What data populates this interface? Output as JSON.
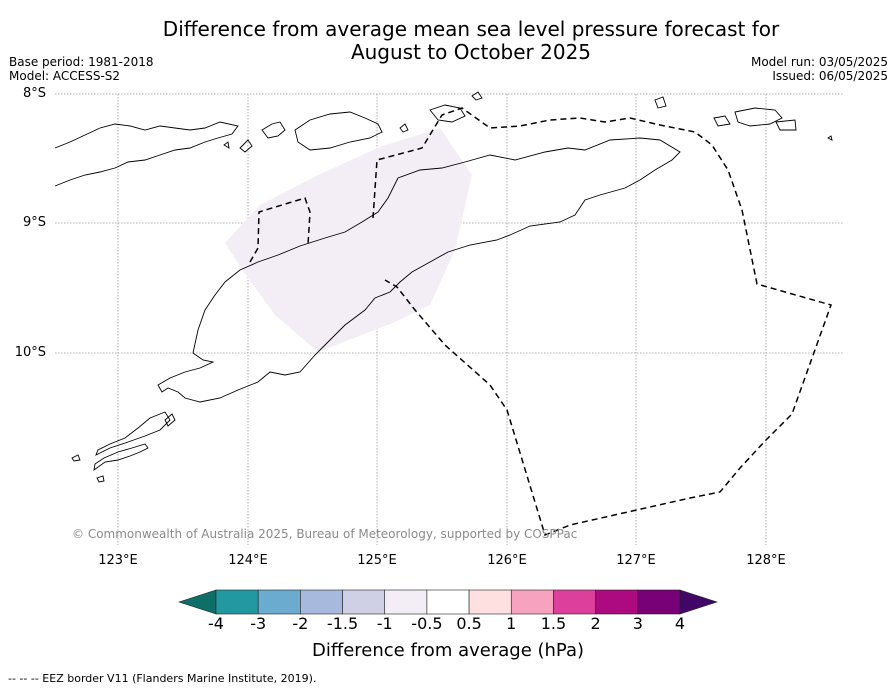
{
  "title_line1": "Difference from average mean sea level pressure forecast for",
  "title_line2": "August to October 2025",
  "meta": {
    "base_period": "Base period: 1981-2018",
    "model": "Model: ACCESS-S2",
    "model_run": "Model run: 03/05/2025",
    "issued": "Issued: 06/05/2025"
  },
  "lat_labels": [
    "8°S",
    "9°S",
    "10°S"
  ],
  "lon_labels": [
    "123°E",
    "124°E",
    "125°E",
    "126°E",
    "127°E",
    "128°E"
  ],
  "copyright": "© Commonwealth of Australia 2025, Bureau of Meteorology, supported by COSPPac",
  "colorbar": {
    "label": "Difference from average (hPa)",
    "ticks": [
      "-4",
      "-3",
      "-2",
      "-1.5",
      "-1",
      "-0.5",
      "0.5",
      "1",
      "1.5",
      "2",
      "3",
      "4"
    ],
    "colors": [
      "#0e6f68",
      "#2299a0",
      "#6aabcf",
      "#a7b9dc",
      "#cfcfe5",
      "#f3eef5",
      "#ffffff",
      "#fde0df",
      "#f7a2be",
      "#dd3f9c",
      "#ac0a7e",
      "#790177",
      "#420766"
    ]
  },
  "anomaly_region": {
    "value_range_hPa": "-1 to -0.5",
    "color": "#f3eef5"
  },
  "footnote": "--  --  -- EEZ border V11 (Flanders Marine Institute, 2019)."
}
